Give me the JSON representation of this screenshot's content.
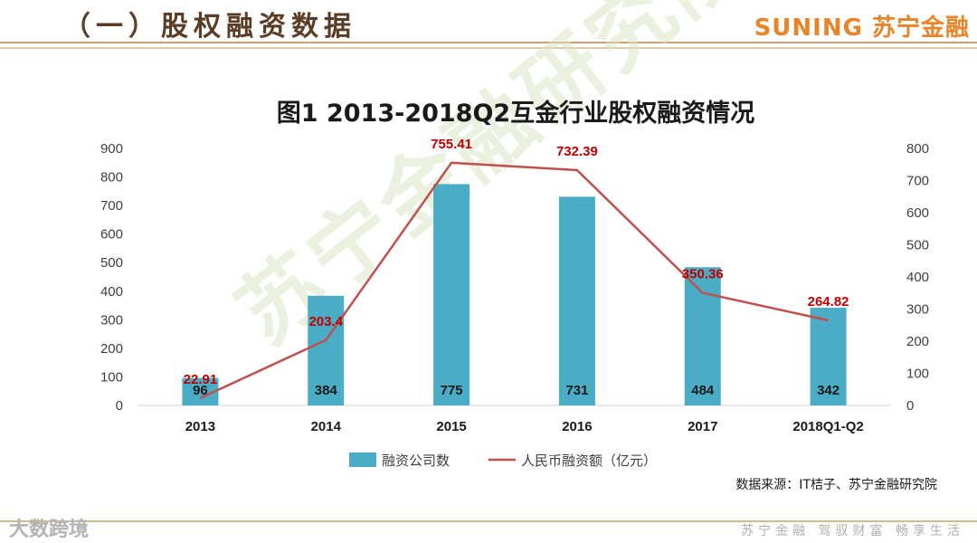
{
  "header": {
    "title": "（一）股权融资数据",
    "brand": "SUNING 苏宁金融"
  },
  "watermark": "苏宁金融研究院",
  "source_note": "数据来源：IT桔子、苏宁金融研究院",
  "footer": {
    "left": "大数跨境",
    "right": "苏宁金融 驾驭财富 畅享生活"
  },
  "chart_data": {
    "type": "bar",
    "title": "图1  2013-2018Q2互金行业股权融资情况",
    "categories": [
      "2013",
      "2014",
      "2015",
      "2016",
      "2017",
      "2018Q1-Q2"
    ],
    "series": [
      {
        "name": "融资公司数",
        "type": "bar",
        "axis": "left",
        "color": "#4bacc6",
        "values": [
          96,
          384,
          775,
          731,
          484,
          342
        ]
      },
      {
        "name": "人民币融资额（亿元）",
        "type": "line",
        "axis": "right",
        "color": "#c0504d",
        "values": [
          22.91,
          203.4,
          755.41,
          732.39,
          350.36,
          264.82
        ],
        "labels": [
          "22.91",
          "203.4",
          "755.41",
          "732.39",
          "350.36",
          "264.82"
        ]
      }
    ],
    "ylim_left": [
      0,
      900
    ],
    "yticks_left": [
      0,
      100,
      200,
      300,
      400,
      500,
      600,
      700,
      800,
      900
    ],
    "ylim_right": [
      0,
      800
    ],
    "yticks_right": [
      0,
      100,
      200,
      300,
      400,
      500,
      600,
      700,
      800
    ],
    "legend_position": "bottom",
    "grid": false
  }
}
